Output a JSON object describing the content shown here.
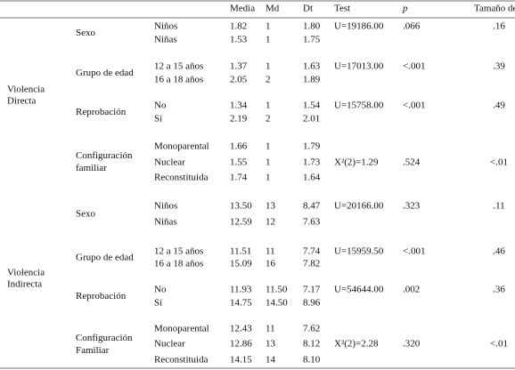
{
  "table": {
    "header": [
      "Media",
      "Md",
      "Dt",
      "Test",
      "p",
      "Tamaño de efecto"
    ],
    "groups": [
      {
        "label": [
          "Violencia",
          "Directa"
        ],
        "variables": [
          {
            "label": [
              "Sexo"
            ],
            "test": "U=19186.00",
            "p": ".066",
            "effect": ".16",
            "rows": [
              [
                "Niños",
                "1.82",
                "1",
                "1.80"
              ],
              [
                "Niñas",
                "1.53",
                "1",
                "1.75"
              ]
            ]
          },
          {
            "label": [
              "Grupo de edad"
            ],
            "test": "U=17013.00",
            "p": "<.001",
            "effect": ".39",
            "rows": [
              [
                "12 a 15 años",
                "1.37",
                "1",
                "1.63"
              ],
              [
                "16 a 18 años",
                "2.05",
                "2",
                "1.89"
              ]
            ]
          },
          {
            "label": [
              "Reprobación"
            ],
            "test": "U=15758.00",
            "p": "<.001",
            "effect": ".49",
            "rows": [
              [
                "No",
                "1.34",
                "1",
                "1.54"
              ],
              [
                "Sí",
                "2.19",
                "2",
                "2.01"
              ]
            ]
          },
          {
            "label": [
              "Configuración",
              "familiar"
            ],
            "test": "X²(2)=1.29",
            "p": ".524",
            "effect": "<.01",
            "rows": [
              [
                "Monoparental",
                "1.66",
                "1",
                "1.79"
              ],
              [
                "Nuclear",
                "1.55",
                "1",
                "1.73"
              ],
              [
                "Reconstituida",
                "1.74",
                "1",
                "1.64"
              ]
            ]
          }
        ]
      },
      {
        "label": [
          "Violencia",
          "Indirecta"
        ],
        "variables": [
          {
            "label": [
              "Sexo"
            ],
            "test": "U=20166.00",
            "p": ".323",
            "effect": ".11",
            "rows": [
              [
                "Niños",
                "13.50",
                "13",
                "8.47"
              ],
              [
                "Niñas",
                "12.59",
                "12",
                "7.63"
              ]
            ]
          },
          {
            "label": [
              "Grupo de edad"
            ],
            "test": "U=15959.50",
            "p": "<.001",
            "effect": ".46",
            "rows": [
              [
                "12 a 15 años",
                "11.51",
                "11",
                "7.74"
              ],
              [
                "16 a 18 años",
                "15.09",
                "16",
                "7.82"
              ]
            ]
          },
          {
            "label": [
              "Reprobación"
            ],
            "test": "U=54644.00",
            "p": ".002",
            "effect": ".36",
            "rows": [
              [
                "No",
                "11.93",
                "11.50",
                "7.17"
              ],
              [
                "Sí",
                "14.75",
                "14.50",
                "8.96"
              ]
            ]
          },
          {
            "label": [
              "Configuración",
              "Familiar"
            ],
            "test": "X²(2)=2.28",
            "p": ".320",
            "effect": "<.01",
            "rows": [
              [
                "Monoparental",
                "12.43",
                "11",
                "7.62"
              ],
              [
                "Nuclear",
                "12.86",
                "13",
                "8.12"
              ],
              [
                "Reconstituida",
                "14.15",
                "14",
                "8.10"
              ]
            ]
          }
        ]
      }
    ]
  }
}
